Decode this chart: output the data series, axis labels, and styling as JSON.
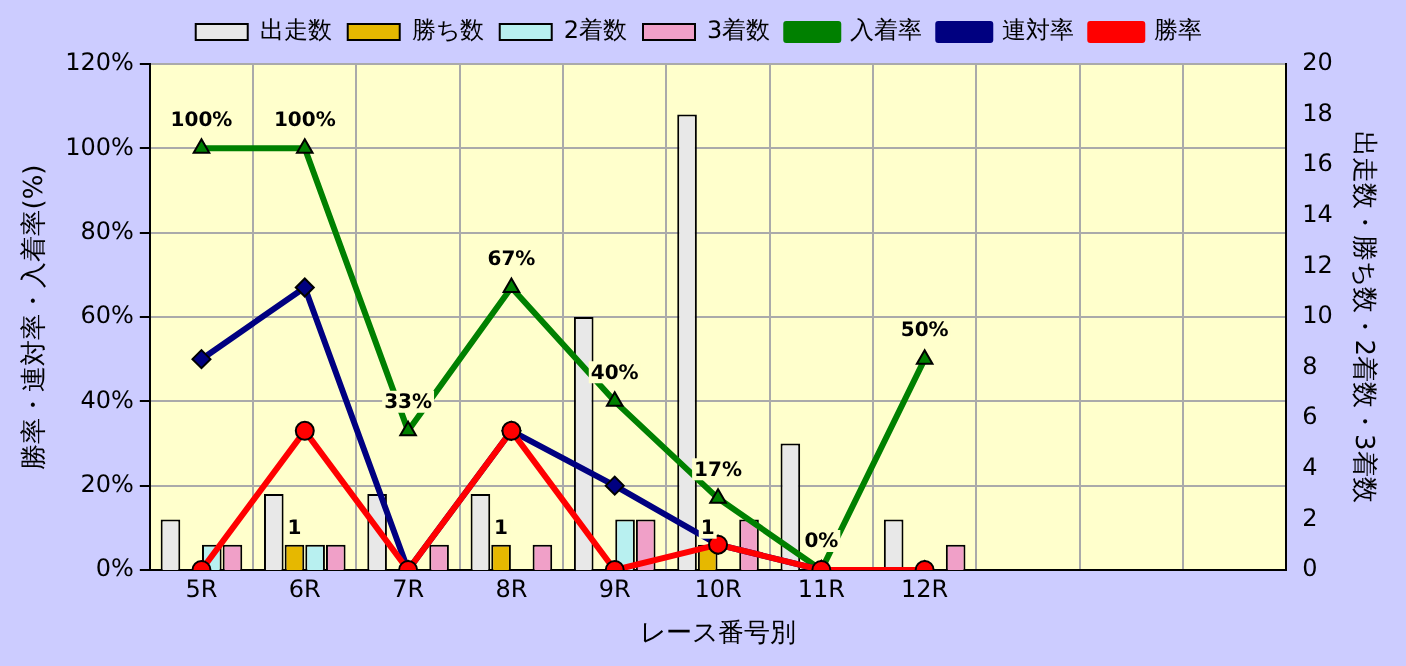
{
  "chart_data": {
    "type": "bar",
    "xlabel": "レース番号別",
    "ylabel": "勝率・連対率・入着率(%)",
    "y2label": "出走数・勝ち数・2着数・3着数",
    "categories": [
      "5R",
      "6R",
      "7R",
      "8R",
      "9R",
      "10R",
      "11R",
      "12R",
      null,
      null,
      null
    ],
    "series": [
      {
        "name": "出走数",
        "axis": "y2",
        "color": "#e8e8e8",
        "values": [
          2,
          3,
          3,
          3,
          10,
          18,
          5,
          2,
          null,
          null,
          null
        ]
      },
      {
        "name": "勝ち数",
        "axis": "y2",
        "color": "#e6b800",
        "values": [
          0,
          1,
          0,
          1,
          0,
          1,
          0,
          0,
          null,
          null,
          null
        ],
        "value_labels": [
          null,
          "1",
          null,
          "1",
          null,
          "1",
          null,
          null,
          null,
          null,
          null
        ]
      },
      {
        "name": "2着数",
        "axis": "y2",
        "color": "#b8f0f0",
        "values": [
          1,
          1,
          0,
          0,
          2,
          0,
          0,
          0,
          null,
          null,
          null
        ]
      },
      {
        "name": "3着数",
        "axis": "y2",
        "color": "#f0a0c8",
        "values": [
          1,
          1,
          1,
          1,
          2,
          2,
          0,
          1,
          null,
          null,
          null
        ]
      },
      {
        "name": "入着率",
        "type": "line",
        "marker": "triangle",
        "color": "#008000",
        "values": [
          100,
          100,
          33,
          67,
          40,
          17,
          0,
          50,
          null,
          null,
          null
        ],
        "value_labels": [
          "100%",
          "100%",
          "33%",
          "67%",
          "40%",
          "17%",
          "0%",
          "50%",
          null,
          null,
          null
        ]
      },
      {
        "name": "連対率",
        "type": "line",
        "marker": "diamond",
        "color": "#000080",
        "values": [
          50,
          67,
          0,
          33,
          20,
          6,
          0,
          0,
          null,
          null,
          null
        ]
      },
      {
        "name": "勝率",
        "type": "line",
        "marker": "circle",
        "color": "#ff0000",
        "values": [
          0,
          33,
          0,
          33,
          0,
          6,
          0,
          0,
          null,
          null,
          null
        ]
      }
    ],
    "ylim": [
      0,
      120
    ],
    "yticks": [
      {
        "value": 0,
        "label": "0%"
      },
      {
        "value": 20,
        "label": "20%"
      },
      {
        "value": 40,
        "label": "40%"
      },
      {
        "value": 60,
        "label": "60%"
      },
      {
        "value": 80,
        "label": "80%"
      },
      {
        "value": 100,
        "label": "100%"
      },
      {
        "value": 120,
        "label": "120%"
      }
    ],
    "y2lim": [
      0,
      20
    ],
    "y2ticks": [
      0,
      2,
      4,
      6,
      8,
      10,
      12,
      14,
      16,
      18,
      20
    ],
    "grid": true,
    "legend": "top"
  }
}
